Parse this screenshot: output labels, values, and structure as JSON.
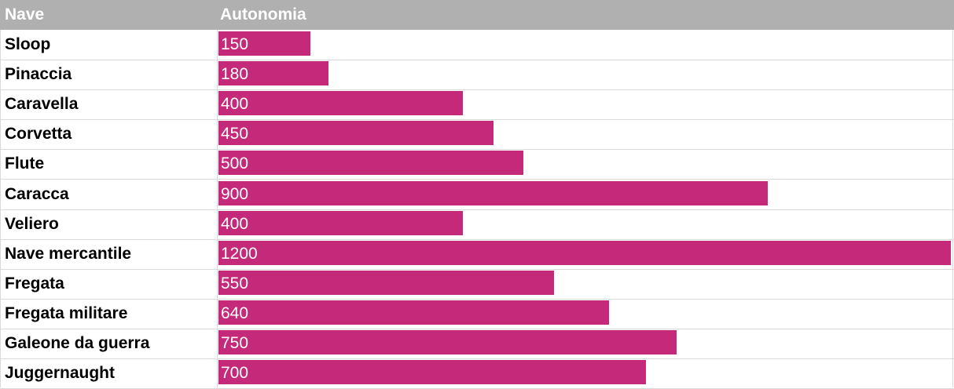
{
  "header": {
    "col_nave": "Nave",
    "col_autonomia": "Autonomia"
  },
  "colors": {
    "bar": "#c5297a",
    "header_bg": "#b0b0b0"
  },
  "chart_data": {
    "type": "bar",
    "orientation": "horizontal",
    "xlim": [
      0,
      1200
    ],
    "categories": [
      "Sloop",
      "Pinaccia",
      "Caravella",
      "Corvetta",
      "Flute",
      "Caracca",
      "Veliero",
      "Nave mercantile",
      "Fregata",
      "Fregata militare",
      "Galeone da guerra",
      "Juggernaught"
    ],
    "values": [
      150,
      180,
      400,
      450,
      500,
      900,
      400,
      1200,
      550,
      640,
      750,
      700
    ]
  }
}
